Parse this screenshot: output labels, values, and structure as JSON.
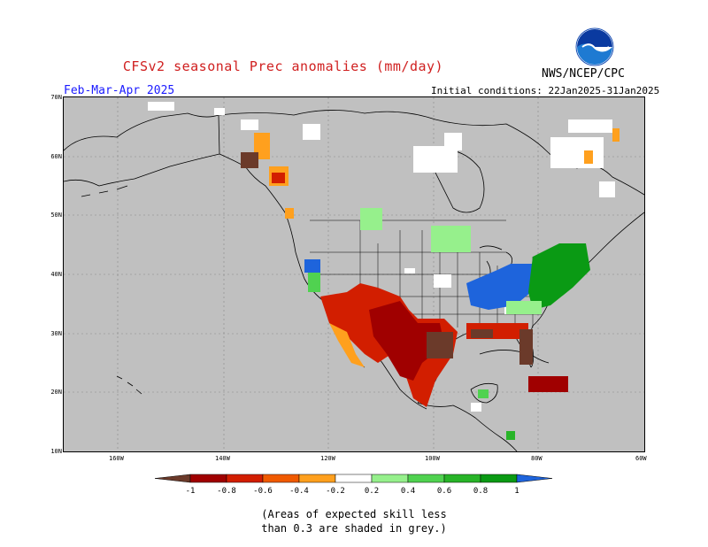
{
  "title": "CFSv2 seasonal Prec anomalies (mm/day)",
  "agency": "NWS/NCEP/CPC",
  "logo_text": "NOAA",
  "season": "Feb-Mar-Apr 2025",
  "initial_conditions": "Initial conditions: 22Jan2025-31Jan2025",
  "lat_labels": [
    "70N",
    "60N",
    "50N",
    "40N",
    "30N",
    "20N",
    "10N"
  ],
  "lon_labels": [
    "160W",
    "140W",
    "120W",
    "100W",
    "80W",
    "60W"
  ],
  "colorbar": {
    "ticks": [
      "-1",
      "-0.8",
      "-0.6",
      "-0.4",
      "-0.2",
      "0.2",
      "0.4",
      "0.6",
      "0.8",
      "1"
    ],
    "colors": [
      "#6b3a2a",
      "#a00000",
      "#d21e00",
      "#f05a00",
      "#ffa01e",
      "#ffffff",
      "#96f08c",
      "#50d250",
      "#28b428",
      "#0a9a14",
      "#1e64dc"
    ]
  },
  "note_line1": "(Areas of expected skill less",
  "note_line2": "than 0.3 are shaded in grey.)",
  "map": {
    "background_color": "#c0c0c0",
    "lat_range": [
      10,
      70
    ],
    "lon_range": [
      -190,
      -60
    ],
    "anomaly_regions": [
      {
        "region": "Alaska panhandle / Yukon",
        "class": "-0.4 to -0.2",
        "color": "#ffa01e"
      },
      {
        "region": "Southeast Alaska coast",
        "class": "below -1",
        "color": "#6b3a2a"
      },
      {
        "region": "Southwest US / California",
        "class": "-0.8 to -0.4",
        "color": "#d21e00"
      },
      {
        "region": "Northern Mexico / Texas",
        "class": "-1 to -0.6",
        "color": "#a00000"
      },
      {
        "region": "Gulf Coast / Florida",
        "class": "below -1",
        "color": "#6b3a2a"
      },
      {
        "region": "Ohio Valley / Midwest",
        "class": "above 1",
        "color": "#1e64dc"
      },
      {
        "region": "Northeast US / Mid-Atlantic",
        "class": "0.6 to 1",
        "color": "#0a9a14"
      },
      {
        "region": "Northern Plains",
        "class": "0.2 to 0.4",
        "color": "#96f08c"
      },
      {
        "region": "Pacific Northwest",
        "class": "above 1",
        "color": "#1e64dc"
      },
      {
        "region": "Caribbean / Hispaniola",
        "class": "-1 to -0.6",
        "color": "#a00000"
      }
    ]
  }
}
